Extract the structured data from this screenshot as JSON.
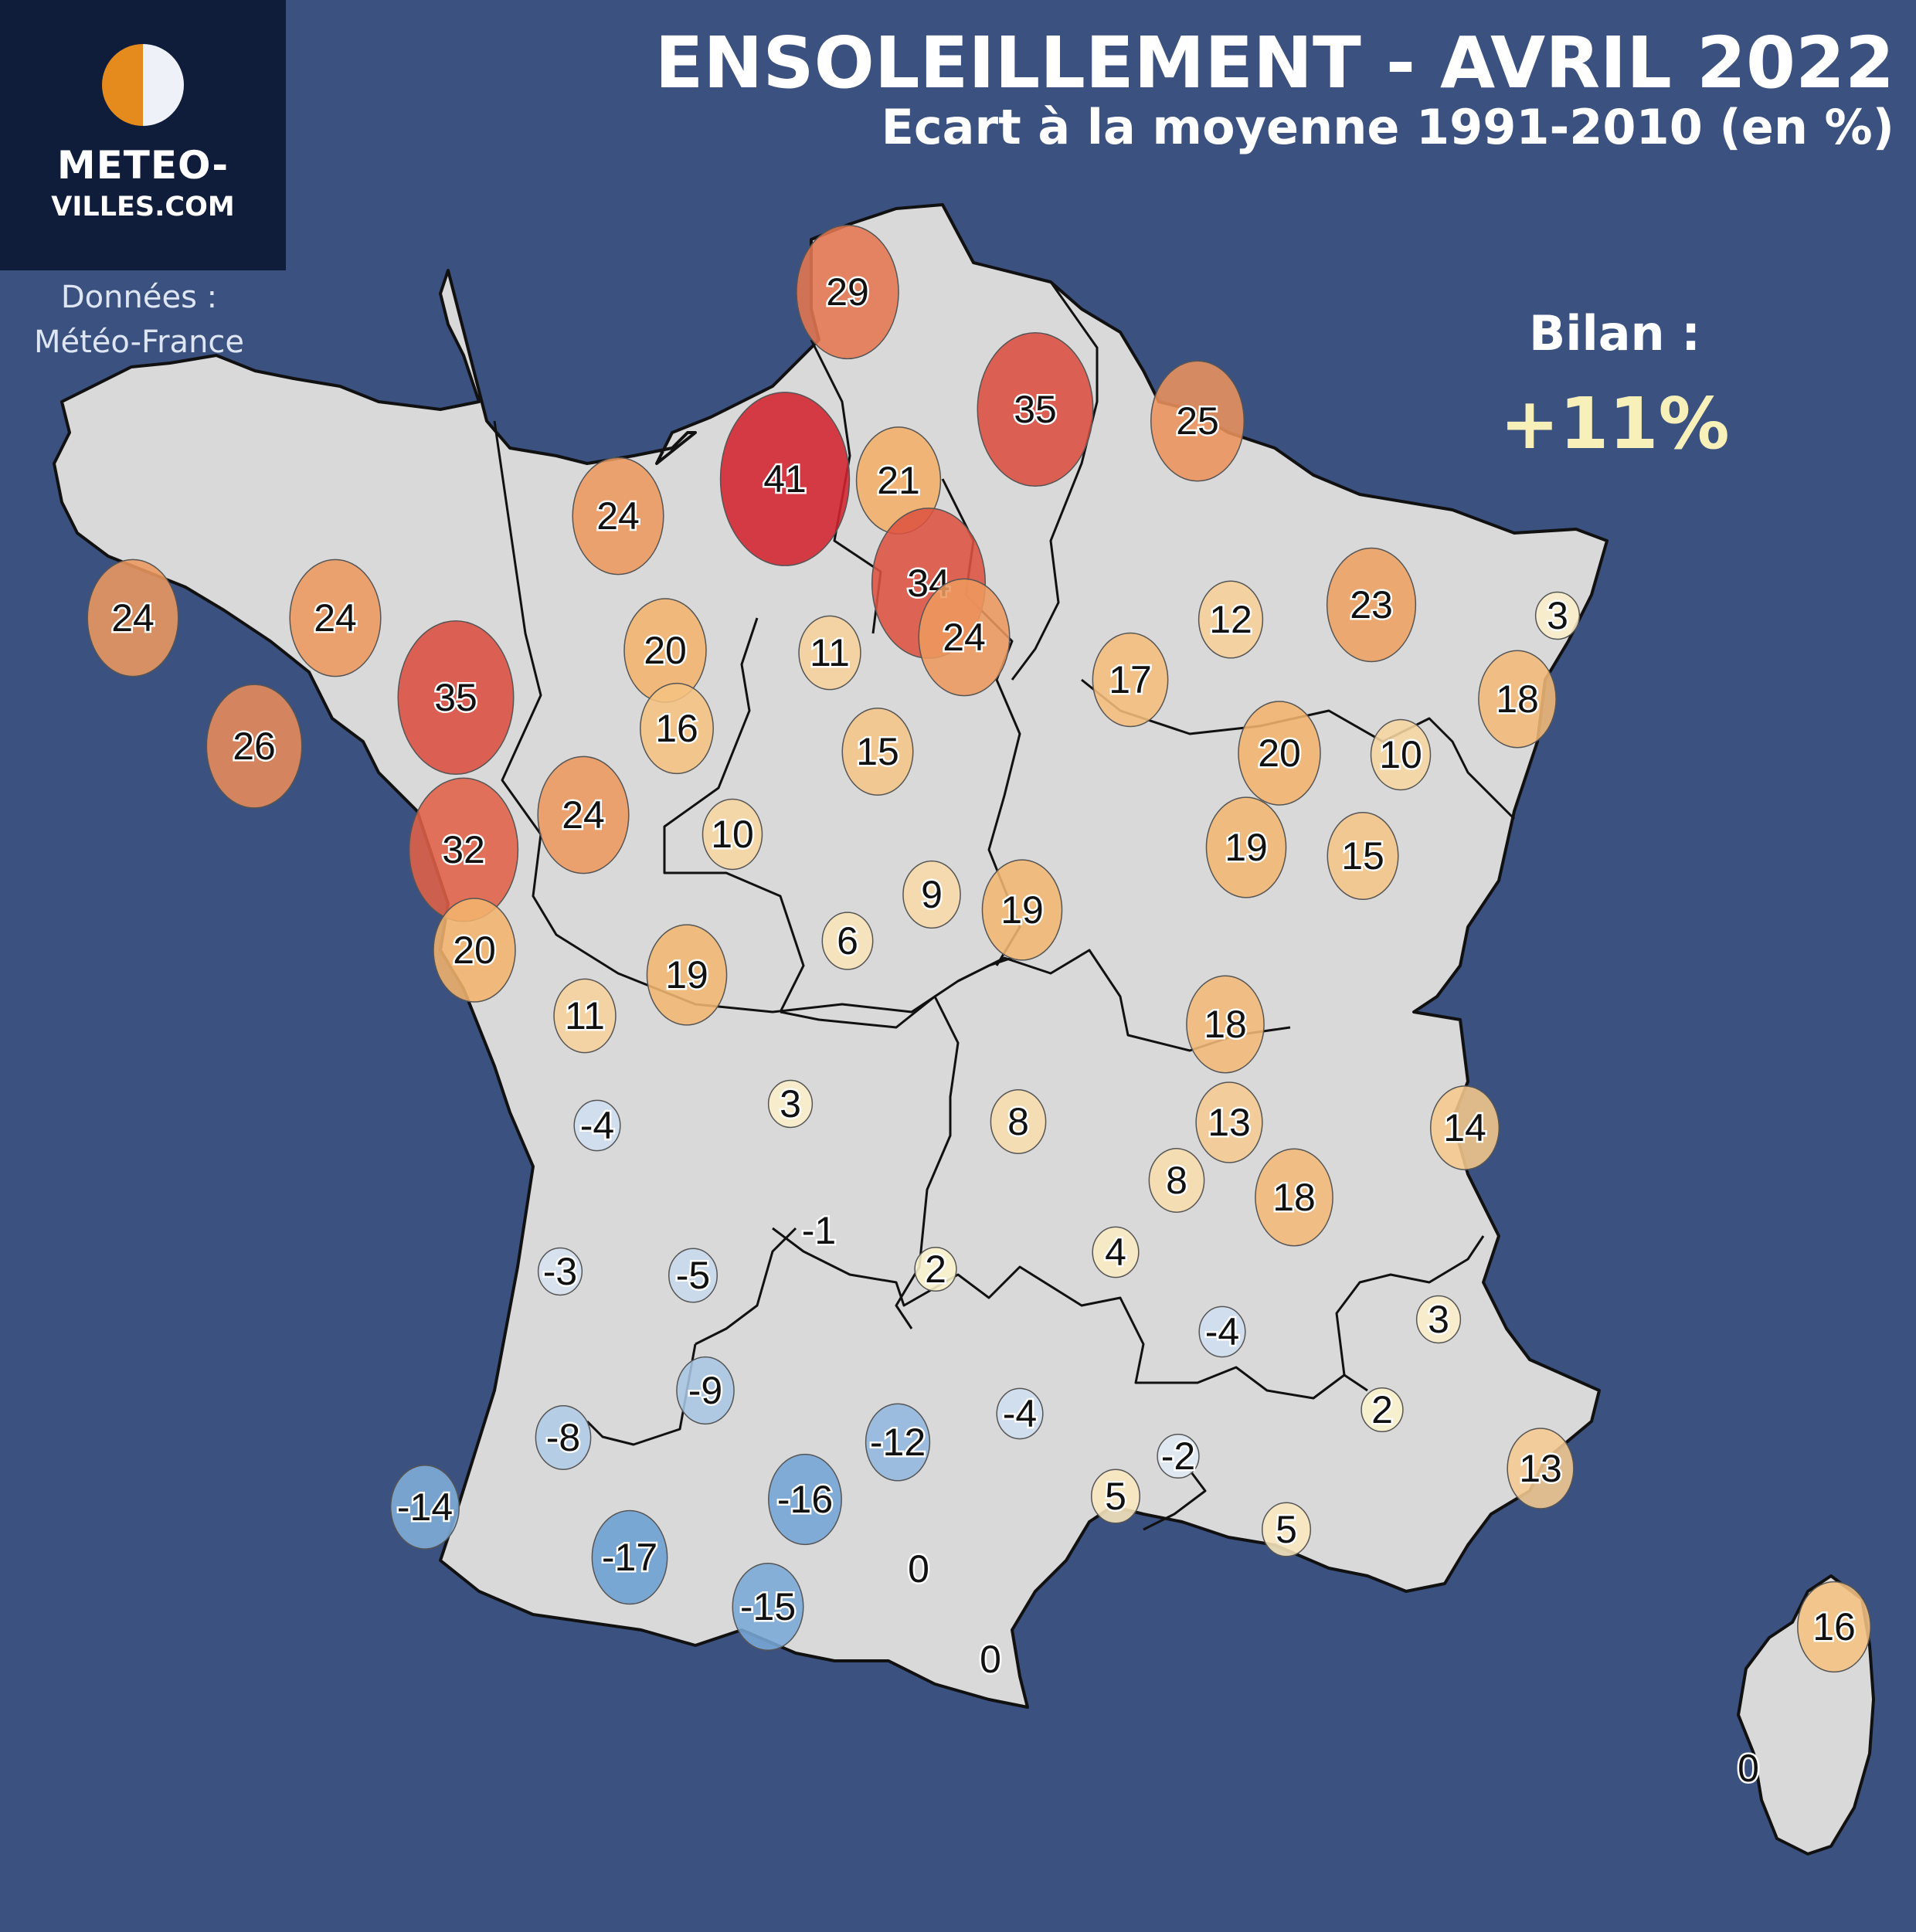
{
  "header": {
    "title": "ENSOLEILLEMENT - AVRIL 2022",
    "subtitle": "Ecart à la moyenne 1991-2010 (en %)"
  },
  "logo": {
    "line1": "METEO-",
    "line2": "VILLES.COM"
  },
  "source": {
    "line1": "Données :",
    "line2": "Météo-France"
  },
  "summary": {
    "label": "Bilan :",
    "value": "+11%"
  },
  "colors": {
    "background": "#3b5180",
    "land": "#d9d9d9",
    "border": "#111111",
    "logo_box": "#0f1d3a",
    "logo_orange": "#e58a1c",
    "positive_high": "#d2232d",
    "positive_low": "#fbf9d8",
    "negative": "#6b9fd3"
  },
  "stations": [
    {
      "id": "abbeville",
      "value": 29
    },
    {
      "id": "caen",
      "value": 24
    },
    {
      "id": "rouen",
      "value": 41
    },
    {
      "id": "beauvais",
      "value": 21
    },
    {
      "id": "saint-quentin",
      "value": 35
    },
    {
      "id": "charleville",
      "value": 25
    },
    {
      "id": "paris",
      "value": 34
    },
    {
      "id": "reims",
      "value": 24
    },
    {
      "id": "brest",
      "value": 24
    },
    {
      "id": "saint-brieuc",
      "value": 24
    },
    {
      "id": "rennes",
      "value": 35
    },
    {
      "id": "quimper",
      "value": 26
    },
    {
      "id": "alencon",
      "value": 20
    },
    {
      "id": "le-mans",
      "value": 16
    },
    {
      "id": "chartres",
      "value": 11
    },
    {
      "id": "orleans",
      "value": 15
    },
    {
      "id": "troyes",
      "value": 17
    },
    {
      "id": "metz",
      "value": 12
    },
    {
      "id": "nancy",
      "value": 23
    },
    {
      "id": "strasbourg",
      "value": 3
    },
    {
      "id": "colmar",
      "value": 18
    },
    {
      "id": "langres",
      "value": 20
    },
    {
      "id": "besancon-n",
      "value": 10
    },
    {
      "id": "nantes",
      "value": 32
    },
    {
      "id": "angers",
      "value": 24
    },
    {
      "id": "tours",
      "value": 10
    },
    {
      "id": "auxerre",
      "value": 9
    },
    {
      "id": "dijon",
      "value": 19
    },
    {
      "id": "dole",
      "value": 19
    },
    {
      "id": "besancon",
      "value": 15
    },
    {
      "id": "la-roche",
      "value": 20
    },
    {
      "id": "poitiers",
      "value": 11
    },
    {
      "id": "chateauroux",
      "value": 19
    },
    {
      "id": "bourges",
      "value": 6
    },
    {
      "id": "macon",
      "value": 18
    },
    {
      "id": "cognac",
      "value": -4
    },
    {
      "id": "limoges",
      "value": 3
    },
    {
      "id": "vichy",
      "value": 8
    },
    {
      "id": "lyon",
      "value": 13
    },
    {
      "id": "chambery",
      "value": 14
    },
    {
      "id": "saint-etienne",
      "value": 8
    },
    {
      "id": "grenoble",
      "value": 18
    },
    {
      "id": "brive",
      "value": -1
    },
    {
      "id": "bordeaux",
      "value": -3
    },
    {
      "id": "bergerac",
      "value": -5
    },
    {
      "id": "aurillac",
      "value": 2
    },
    {
      "id": "le-puy",
      "value": 4
    },
    {
      "id": "montelimar",
      "value": -4
    },
    {
      "id": "embrun",
      "value": 3
    },
    {
      "id": "agen",
      "value": -9
    },
    {
      "id": "mont-de-marsan",
      "value": -8
    },
    {
      "id": "rodez",
      "value": -12
    },
    {
      "id": "millau",
      "value": -4
    },
    {
      "id": "orange",
      "value": 2
    },
    {
      "id": "nimes",
      "value": -2
    },
    {
      "id": "nice",
      "value": 13
    },
    {
      "id": "biarritz",
      "value": -14
    },
    {
      "id": "toulouse",
      "value": -16
    },
    {
      "id": "montpellier",
      "value": 5
    },
    {
      "id": "marseille",
      "value": 5
    },
    {
      "id": "tarbes",
      "value": -17
    },
    {
      "id": "carcassonne",
      "value": 0
    },
    {
      "id": "saint-girons",
      "value": -15
    },
    {
      "id": "perpignan",
      "value": 0
    },
    {
      "id": "bastia",
      "value": 16
    },
    {
      "id": "ajaccio",
      "value": 0
    }
  ]
}
